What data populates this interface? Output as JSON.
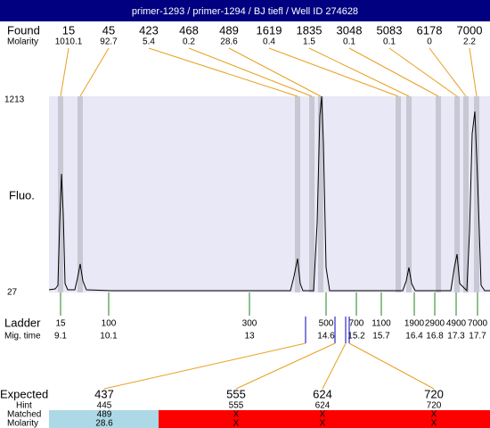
{
  "header": {
    "title": "primer-1293 / primer-1294 / BJ tiefl / Well ID 274628"
  },
  "found": {
    "label": "Found",
    "molarity_label": "Molarity",
    "sizes": [
      "15",
      "45",
      "423",
      "468",
      "489",
      "1619",
      "1835",
      "3048",
      "5083",
      "6178",
      "7000"
    ],
    "molarity": [
      "1010.1",
      "92.7",
      "5.4",
      "0.2",
      "28.6",
      "0.4",
      "1.5",
      "0.1",
      "0.1",
      "0",
      "2.2"
    ]
  },
  "axis": {
    "top": "1213",
    "bottom": "27",
    "label": "Fluo."
  },
  "ladder": {
    "label": "Ladder",
    "time_label": "Mig. time",
    "sizes": [
      "15",
      "100",
      "300",
      "500",
      "700",
      "1100",
      "1900",
      "2900",
      "4900",
      "7000"
    ],
    "times": [
      "9.1",
      "10.1",
      "13",
      "14.6",
      "15.2",
      "15.7",
      "16.4",
      "16.8",
      "17.3",
      "17.7"
    ]
  },
  "expected": {
    "label": "Expected",
    "hint_label": "Hint",
    "matched_label": "Matched",
    "molarity_label": "Molarity",
    "values": [
      "437",
      "555",
      "624",
      "720"
    ],
    "hints": [
      "445",
      "555",
      "624",
      "720"
    ],
    "matched": [
      "489",
      "X",
      "X",
      "X"
    ],
    "molarity": [
      "28.6",
      "X",
      "X",
      "X"
    ]
  }
}
